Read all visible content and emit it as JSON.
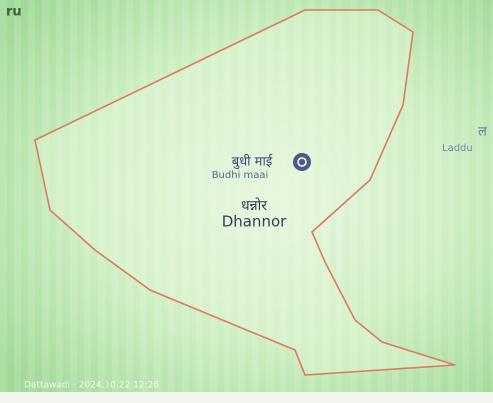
{
  "map": {
    "corner_label": "ru",
    "places": [
      {
        "name_local": "बुधी माई",
        "name": "Budhi maai"
      },
      {
        "name_local": "धन्नोर",
        "name": "Dhannor"
      },
      {
        "name_local": "ल",
        "name": "Laddu"
      }
    ],
    "footer": "Dattawadi · 2024.10.22 12:26"
  }
}
